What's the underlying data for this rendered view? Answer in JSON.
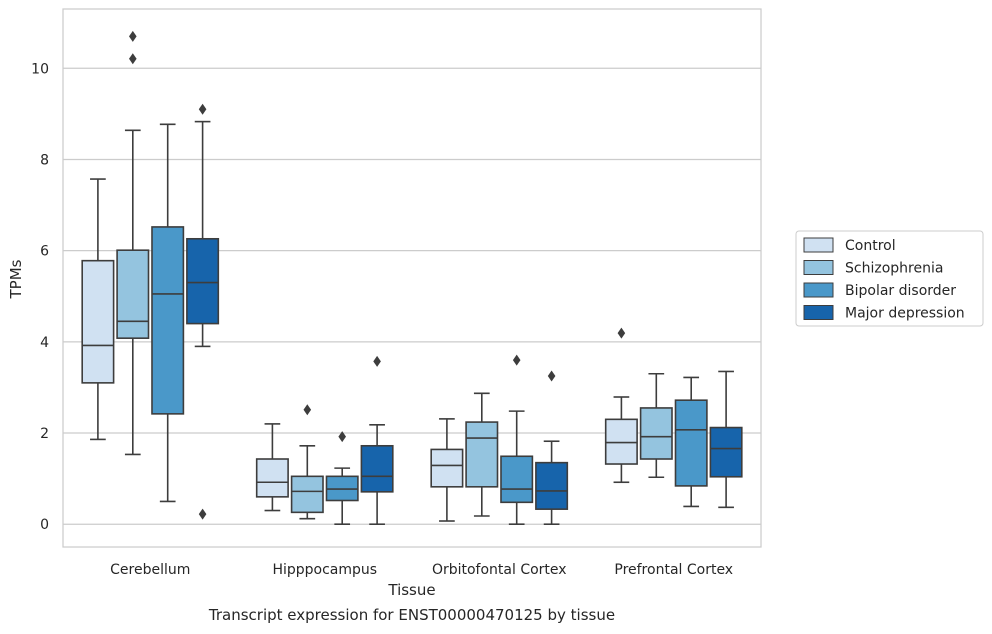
{
  "caption": "Transcript expression for ENST00000470125 by tissue",
  "chart_data": {
    "type": "boxplot",
    "title": "",
    "xlabel": "Tissue",
    "ylabel": "TPMs",
    "ylim": [
      -0.5,
      11.3
    ],
    "yticks": [
      0,
      2,
      4,
      6,
      8,
      10
    ],
    "grid": true,
    "legend_position": "right",
    "categories": [
      "Cerebellum",
      "Hipppocampus",
      "Orbitofontal Cortex",
      "Prefrontal Cortex"
    ],
    "series": [
      {
        "name": "Control",
        "color": "#d0e1f2",
        "boxes": [
          {
            "whislo": 1.86,
            "q1": 3.1,
            "med": 3.92,
            "q3": 5.78,
            "whishi": 7.57,
            "fliers": []
          },
          {
            "whislo": 0.3,
            "q1": 0.6,
            "med": 0.92,
            "q3": 1.43,
            "whishi": 2.2,
            "fliers": []
          },
          {
            "whislo": 0.07,
            "q1": 0.82,
            "med": 1.29,
            "q3": 1.64,
            "whishi": 2.31,
            "fliers": []
          },
          {
            "whislo": 0.92,
            "q1": 1.32,
            "med": 1.79,
            "q3": 2.3,
            "whishi": 2.79,
            "fliers": [
              4.19
            ]
          }
        ]
      },
      {
        "name": "Schizophrenia",
        "color": "#94c4df",
        "boxes": [
          {
            "whislo": 1.53,
            "q1": 4.08,
            "med": 4.45,
            "q3": 6.01,
            "whishi": 8.64,
            "fliers": [
              10.21,
              10.7
            ]
          },
          {
            "whislo": 0.12,
            "q1": 0.26,
            "med": 0.72,
            "q3": 1.05,
            "whishi": 1.72,
            "fliers": [
              2.51
            ]
          },
          {
            "whislo": 0.18,
            "q1": 0.82,
            "med": 1.89,
            "q3": 2.24,
            "whishi": 2.87,
            "fliers": []
          },
          {
            "whislo": 1.03,
            "q1": 1.43,
            "med": 1.92,
            "q3": 2.55,
            "whishi": 3.3,
            "fliers": []
          }
        ]
      },
      {
        "name": "Bipolar disorder",
        "color": "#4a98c9",
        "boxes": [
          {
            "whislo": 0.5,
            "q1": 2.42,
            "med": 5.05,
            "q3": 6.52,
            "whishi": 8.77,
            "fliers": []
          },
          {
            "whislo": 0.0,
            "q1": 0.52,
            "med": 0.77,
            "q3": 1.05,
            "whishi": 1.23,
            "fliers": [
              1.92
            ]
          },
          {
            "whislo": 0.0,
            "q1": 0.48,
            "med": 0.77,
            "q3": 1.49,
            "whishi": 2.48,
            "fliers": [
              3.6
            ]
          },
          {
            "whislo": 0.39,
            "q1": 0.84,
            "med": 2.07,
            "q3": 2.72,
            "whishi": 3.22,
            "fliers": []
          }
        ]
      },
      {
        "name": "Major depression",
        "color": "#1764ab",
        "boxes": [
          {
            "whislo": 3.9,
            "q1": 4.4,
            "med": 5.3,
            "q3": 6.26,
            "whishi": 8.83,
            "fliers": [
              9.1,
              0.22
            ]
          },
          {
            "whislo": 0.0,
            "q1": 0.71,
            "med": 1.05,
            "q3": 1.72,
            "whishi": 2.18,
            "fliers": [
              3.57
            ]
          },
          {
            "whislo": 0.0,
            "q1": 0.33,
            "med": 0.73,
            "q3": 1.35,
            "whishi": 1.82,
            "fliers": [
              3.25
            ]
          },
          {
            "whislo": 0.37,
            "q1": 1.04,
            "med": 1.66,
            "q3": 2.12,
            "whishi": 3.35,
            "fliers": []
          }
        ]
      }
    ]
  }
}
